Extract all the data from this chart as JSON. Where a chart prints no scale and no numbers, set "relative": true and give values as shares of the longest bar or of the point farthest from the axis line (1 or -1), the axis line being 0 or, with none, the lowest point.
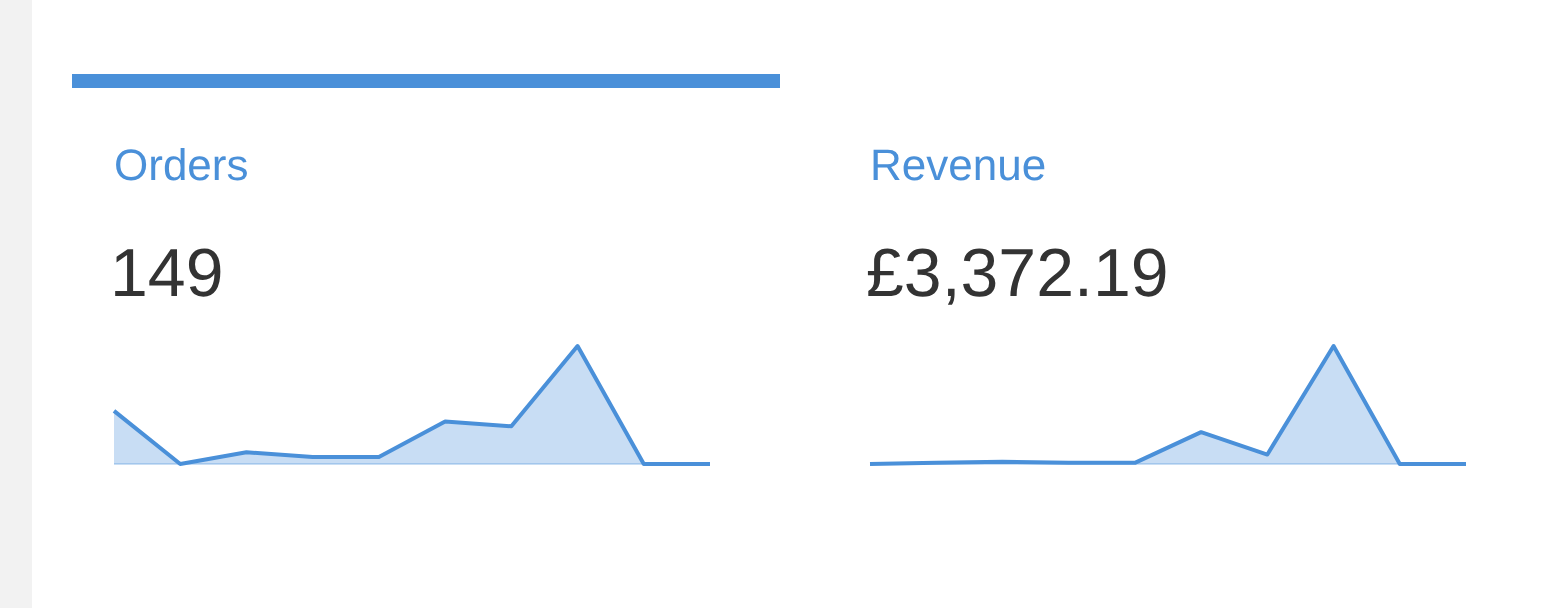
{
  "chart_data": [
    {
      "type": "area",
      "title": "Orders",
      "subtitle": "149",
      "relative": true,
      "categories": [
        null,
        null,
        null,
        null,
        null,
        null,
        null,
        null,
        null,
        null
      ],
      "series": [
        {
          "color": "#4a90d9",
          "values": [
            0.45,
            0,
            0.1,
            0.06,
            0.06,
            0.36,
            0.32,
            1,
            0,
            0
          ]
        }
      ]
    },
    {
      "type": "area",
      "title": "Revenue",
      "subtitle": "£3,372.19",
      "relative": true,
      "categories": [
        null,
        null,
        null,
        null,
        null,
        null,
        null,
        null,
        null,
        null
      ],
      "series": [
        {
          "color": "#4a90d9",
          "values": [
            0,
            0.01,
            0.02,
            0.01,
            0.01,
            0.27,
            0.08,
            1,
            0,
            0
          ]
        }
      ]
    }
  ]
}
